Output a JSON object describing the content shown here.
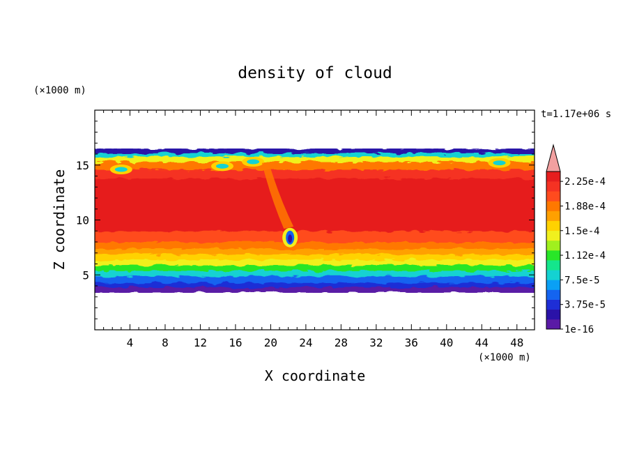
{
  "chart_data": {
    "type": "heatmap",
    "title": "density of cloud",
    "xlabel": "X coordinate",
    "ylabel": "Z coordinate",
    "x_unit": "(×1000 m)",
    "y_unit": "(×1000 m)",
    "time_label": "t=1.17e+06 s",
    "xlim": [
      0,
      50
    ],
    "ylim": [
      0,
      20
    ],
    "x_ticks": [
      4,
      8,
      12,
      16,
      20,
      24,
      28,
      32,
      36,
      40,
      44,
      48
    ],
    "y_ticks": [
      5,
      10,
      15
    ],
    "colorbar": {
      "labels": [
        "1e-16",
        "3.75e-5",
        "7.5e-5",
        "1.12e-4",
        "1.5e-4",
        "1.88e-4",
        "2.25e-4"
      ],
      "colors": [
        "#5a1aa6",
        "#2a12a8",
        "#1e2ed6",
        "#1464f0",
        "#0aa0f5",
        "#14d2d2",
        "#14e68c",
        "#28e628",
        "#a0f01e",
        "#f0f01e",
        "#ffd200",
        "#ffa000",
        "#ff7800",
        "#ff4b1e",
        "#f53223",
        "#e61e1e"
      ],
      "extend_color": "#f2a0a0"
    },
    "cloud_layer": {
      "base_z": 3.4,
      "top_z": 16.5,
      "core_z": [
        8,
        14
      ]
    }
  }
}
